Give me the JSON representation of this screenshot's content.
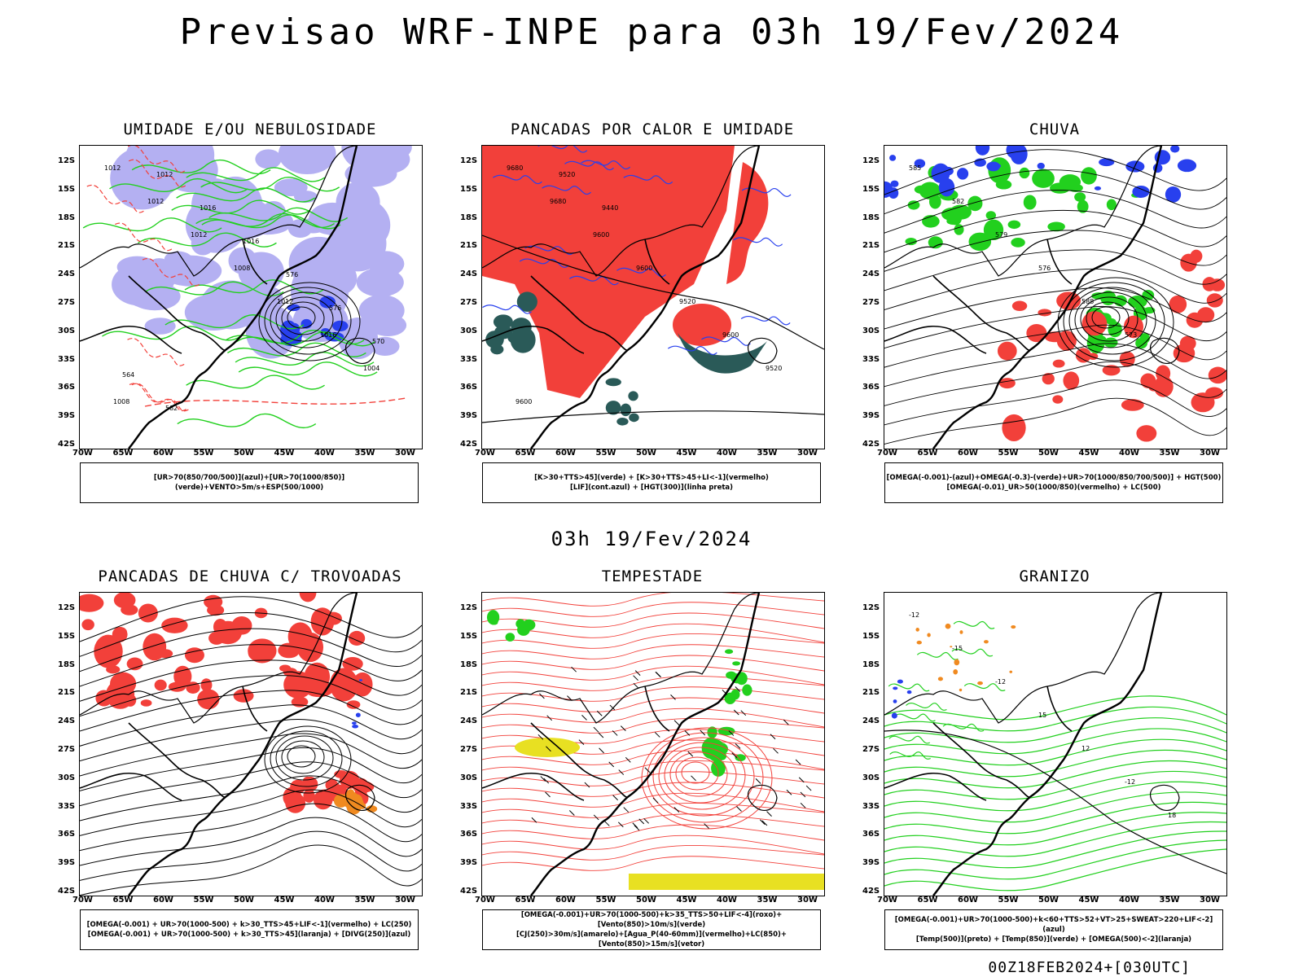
{
  "title": "Previsao WRF-INPE  para 03h 19/Fev/2024",
  "mid_title": "03h 19/Fev/2024",
  "footer": "00Z18FEB2024+[030UTC]",
  "lat_labels": [
    "12S",
    "15S",
    "18S",
    "21S",
    "24S",
    "27S",
    "30S",
    "33S",
    "36S",
    "39S",
    "42S"
  ],
  "lon_labels": [
    "70W",
    "65W",
    "60W",
    "55W",
    "50W",
    "45W",
    "40W",
    "35W",
    "30W"
  ],
  "colors": {
    "red": "#f2403a",
    "green": "#22d01e",
    "blue": "#2840ee",
    "lavender": "#b4b0f2",
    "teal": "#2a5a58",
    "yellow": "#e8e022",
    "orange": "#f08a20",
    "black": "#000000"
  },
  "panels": [
    {
      "id": "umidade",
      "title": "UMIDADE E/OU NEBULOSIDADE",
      "legend": [
        "[UR>70(850/700/500)](azul)+[UR>70(1000/850)](verde)+VENTO>5m/s+ESP(500/1000)"
      ],
      "contour_labels": [
        "1012",
        "1012",
        "1012",
        "1008",
        "1012",
        "1016",
        "1004",
        "1008",
        "1012",
        "1016",
        "1016",
        "576",
        "576",
        "570",
        "564",
        "582"
      ]
    },
    {
      "id": "pancadas-calor",
      "title": "PANCADAS POR CALOR E UMIDADE",
      "legend": [
        "[K>30+TTS>45](verde) + [K>30+TTS>45+LI<-1](vermelho)",
        "[LIF](cont.azul) + [HGT(300)](linha preta)"
      ],
      "contour_labels": [
        "9680",
        "9680",
        "9600",
        "9600",
        "9520",
        "9600",
        "9520",
        "9600",
        "9520",
        "9440"
      ]
    },
    {
      "id": "chuva",
      "title": "CHUVA",
      "legend": [
        "[OMEGA(-0.001)-(azul)+OMEGA(-0.3)-(verde)+UR>70(1000/850/700/500)] + HGT(500)",
        "[OMEGA(-0.01)_UR>50(1000/850)(vermelho) + LC(500)"
      ],
      "contour_labels": [
        "585",
        "582",
        "579",
        "576",
        "588",
        "573"
      ]
    },
    {
      "id": "trovoadas",
      "title": "PANCADAS DE CHUVA C/ TROVOADAS",
      "legend": [
        "[OMEGA(-0.001) + UR>70(1000-500) + k>30_TTS>45+LIF<-1](vermelho) + LC(250)",
        "[OMEGA(-0.001) + UR>70(1000-500) + k>30_TTS>45](laranja) + [DIVG(250)](azul)"
      ],
      "contour_labels": []
    },
    {
      "id": "tempestade",
      "title": "TEMPESTADE",
      "legend": [
        "[OMEGA(-0.001)+UR>70(1000-500)+k>35_TTS>50+LIF<-4](roxo)+[Vento(850)>10m/s](verde)",
        "[CJ(250)>30m/s](amarelo)+[Agua_P(40-60mm)](vermelho)+LC(850)+[Vento(850)>15m/s](vetor)"
      ],
      "contour_labels": []
    },
    {
      "id": "granizo",
      "title": "GRANIZO",
      "legend": [
        "[OMEGA(-0.001)+UR>70(1000-500)+k<60+TTS>52+VT>25+SWEAT>220+LIF<-2](azul)",
        "[Temp(500)](preto) + [Temp(850)](verde) + [OMEGA(500)<-2](laranja)"
      ],
      "contour_labels": [
        "-12",
        "-15",
        "-12",
        "15",
        "12",
        "-12",
        "18"
      ]
    }
  ]
}
